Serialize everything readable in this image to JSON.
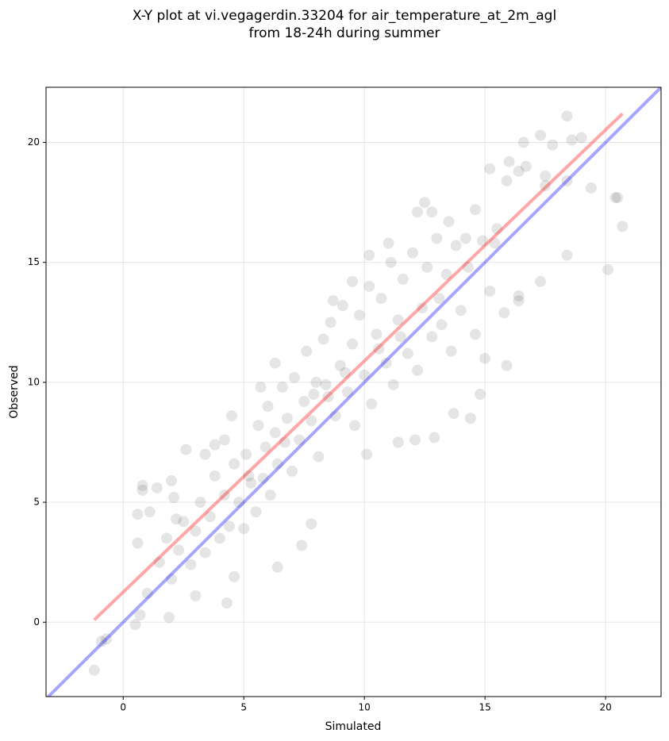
{
  "chart_data": {
    "type": "scatter",
    "title": "X-Y plot at vi.vegagerdin.33204 for air_temperature_at_2m_agl",
    "subtitle": "from 18-24h during summer",
    "x_label": "Simulated",
    "y_label": "Observed",
    "xlim": [
      -3.2,
      22.3
    ],
    "ylim": [
      -3.1,
      22.3
    ],
    "xticks": [
      0,
      5,
      10,
      15,
      20
    ],
    "yticks": [
      0,
      5,
      10,
      15,
      20
    ],
    "grid": true,
    "point_color": "#000000",
    "point_alpha": 0.1,
    "points": [
      [
        -1.2,
        -2.0
      ],
      [
        -0.7,
        -0.7
      ],
      [
        -0.9,
        -0.8
      ],
      [
        0.5,
        -0.1
      ],
      [
        0.6,
        3.3
      ],
      [
        0.6,
        4.5
      ],
      [
        0.8,
        5.5
      ],
      [
        0.8,
        5.7
      ],
      [
        1.1,
        4.6
      ],
      [
        1.4,
        5.6
      ],
      [
        0.7,
        0.3
      ],
      [
        1.0,
        1.2
      ],
      [
        1.9,
        0.2
      ],
      [
        2.1,
        5.2
      ],
      [
        2.6,
        7.2
      ],
      [
        3.0,
        1.1
      ],
      [
        4.3,
        0.8
      ],
      [
        4.6,
        1.9
      ],
      [
        6.4,
        2.3
      ],
      [
        7.4,
        3.2
      ],
      [
        7.8,
        4.1
      ],
      [
        10.1,
        7.0
      ],
      [
        11.4,
        7.5
      ],
      [
        12.1,
        7.6
      ],
      [
        12.9,
        7.7
      ],
      [
        13.7,
        8.7
      ],
      [
        14.4,
        8.5
      ],
      [
        14.8,
        9.5
      ],
      [
        15.0,
        11.0
      ],
      [
        15.9,
        10.7
      ],
      [
        15.8,
        12.9
      ],
      [
        16.4,
        13.4
      ],
      [
        17.3,
        14.2
      ],
      [
        18.4,
        15.3
      ],
      [
        20.1,
        14.7
      ],
      [
        20.7,
        16.5
      ],
      [
        20.4,
        17.7
      ],
      [
        20.5,
        17.7
      ],
      [
        19.4,
        18.1
      ],
      [
        18.4,
        18.4
      ],
      [
        17.5,
        18.2
      ],
      [
        18.4,
        21.1
      ],
      [
        18.6,
        20.1
      ],
      [
        19.0,
        20.2
      ],
      [
        17.3,
        20.3
      ],
      [
        16.6,
        20.0
      ],
      [
        17.8,
        19.9
      ],
      [
        15.2,
        18.9
      ],
      [
        16.4,
        18.8
      ],
      [
        15.9,
        18.4
      ],
      [
        16.7,
        19.0
      ],
      [
        16.0,
        19.2
      ],
      [
        17.5,
        18.6
      ],
      [
        12.5,
        17.5
      ],
      [
        12.2,
        17.1
      ],
      [
        12.8,
        17.1
      ],
      [
        11.0,
        15.8
      ],
      [
        10.2,
        15.3
      ],
      [
        8.7,
        13.4
      ],
      [
        9.5,
        14.2
      ],
      [
        6.3,
        10.8
      ],
      [
        5.7,
        9.8
      ],
      [
        4.5,
        8.6
      ],
      [
        4.2,
        7.6
      ],
      [
        3.8,
        7.4
      ],
      [
        3.4,
        7.0
      ],
      [
        2.0,
        5.9
      ],
      [
        2.2,
        4.3
      ],
      [
        14.6,
        17.2
      ],
      [
        15.4,
        15.8
      ],
      [
        14.2,
        16.0
      ],
      [
        13.5,
        16.7
      ],
      [
        16.4,
        13.6
      ],
      [
        1.5,
        2.5
      ],
      [
        1.8,
        3.5
      ],
      [
        2.0,
        1.8
      ],
      [
        2.3,
        3.0
      ],
      [
        2.5,
        4.2
      ],
      [
        2.8,
        2.4
      ],
      [
        3.0,
        3.8
      ],
      [
        3.2,
        5.0
      ],
      [
        3.4,
        2.9
      ],
      [
        3.6,
        4.4
      ],
      [
        3.8,
        6.1
      ],
      [
        4.0,
        3.5
      ],
      [
        4.2,
        5.3
      ],
      [
        4.4,
        4.0
      ],
      [
        4.6,
        6.6
      ],
      [
        4.8,
        5.0
      ],
      [
        5.0,
        3.9
      ],
      [
        5.1,
        7.0
      ],
      [
        5.3,
        5.8
      ],
      [
        5.5,
        4.6
      ],
      [
        5.6,
        8.2
      ],
      [
        5.8,
        6.0
      ],
      [
        5.9,
        7.3
      ],
      [
        6.0,
        9.0
      ],
      [
        6.1,
        5.3
      ],
      [
        6.3,
        7.9
      ],
      [
        6.4,
        6.6
      ],
      [
        6.6,
        9.8
      ],
      [
        6.8,
        8.5
      ],
      [
        7.0,
        6.3
      ],
      [
        7.1,
        10.2
      ],
      [
        7.3,
        7.6
      ],
      [
        7.5,
        9.2
      ],
      [
        7.6,
        11.3
      ],
      [
        7.8,
        8.4
      ],
      [
        8.0,
        10.0
      ],
      [
        8.1,
        6.9
      ],
      [
        8.3,
        11.8
      ],
      [
        8.5,
        9.4
      ],
      [
        8.6,
        12.5
      ],
      [
        8.8,
        8.6
      ],
      [
        9.0,
        10.7
      ],
      [
        9.1,
        13.2
      ],
      [
        9.3,
        9.6
      ],
      [
        9.5,
        11.6
      ],
      [
        9.6,
        8.2
      ],
      [
        9.8,
        12.8
      ],
      [
        10.0,
        10.3
      ],
      [
        10.2,
        14.0
      ],
      [
        10.3,
        9.1
      ],
      [
        10.5,
        12.0
      ],
      [
        10.7,
        13.5
      ],
      [
        10.9,
        10.8
      ],
      [
        11.1,
        15.0
      ],
      [
        11.2,
        9.9
      ],
      [
        11.4,
        12.6
      ],
      [
        11.6,
        14.3
      ],
      [
        11.8,
        11.2
      ],
      [
        12.0,
        15.4
      ],
      [
        12.2,
        10.5
      ],
      [
        12.4,
        13.1
      ],
      [
        12.6,
        14.8
      ],
      [
        12.8,
        11.9
      ],
      [
        13.0,
        16.0
      ],
      [
        13.2,
        12.4
      ],
      [
        13.4,
        14.5
      ],
      [
        13.6,
        11.3
      ],
      [
        13.8,
        15.7
      ],
      [
        14.0,
        13.0
      ],
      [
        14.3,
        14.8
      ],
      [
        14.6,
        12.0
      ],
      [
        14.9,
        15.9
      ],
      [
        15.2,
        13.8
      ],
      [
        15.5,
        16.4
      ],
      [
        13.1,
        13.5
      ],
      [
        10.6,
        11.4
      ],
      [
        8.4,
        9.9
      ],
      [
        6.7,
        7.5
      ],
      [
        5.2,
        6.1
      ],
      [
        7.9,
        9.5
      ],
      [
        9.2,
        10.4
      ],
      [
        11.5,
        11.9
      ]
    ],
    "lines": [
      {
        "color": "#ff0000",
        "alpha": 0.35,
        "x": [
          -1.2,
          20.7
        ],
        "y": [
          0.1,
          21.2
        ]
      },
      {
        "color": "#0000ff",
        "alpha": 0.35,
        "x": [
          -3.2,
          22.3
        ],
        "y": [
          -3.2,
          22.3
        ]
      }
    ]
  }
}
